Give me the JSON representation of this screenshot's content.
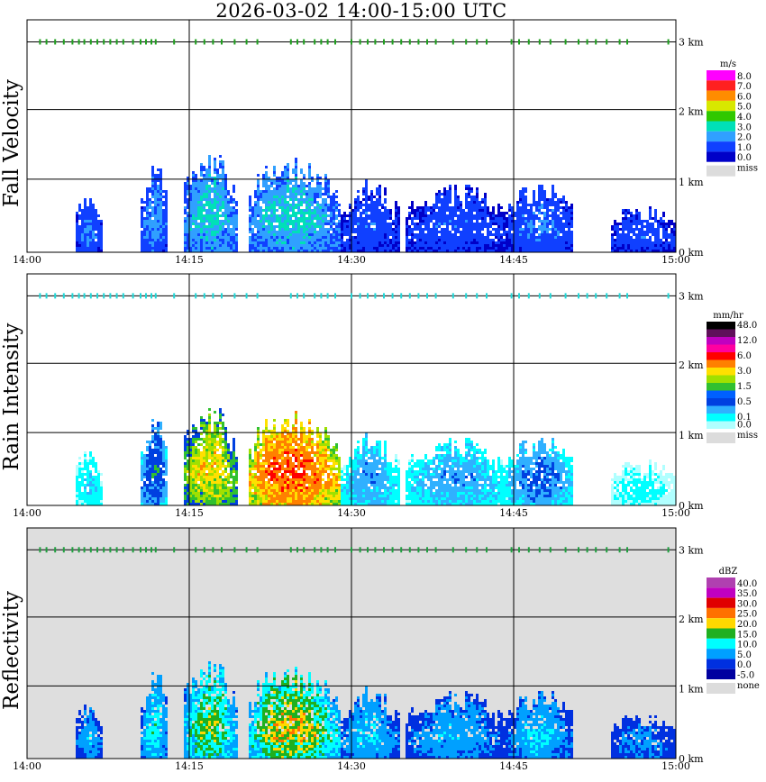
{
  "title": "2026-03-02  14:00-15:00 UTC",
  "x_ticks": [
    "14:00",
    "14:15",
    "14:30",
    "14:45",
    "15:00"
  ],
  "y_ticks": [
    "0 km",
    "1 km",
    "2 km",
    "3 km"
  ],
  "panels": [
    {
      "id": "fall-velocity",
      "label": "Fall Velocity",
      "legend_unit": "m/s",
      "legend": [
        {
          "label": "8.0",
          "color": "#ff00ff"
        },
        {
          "label": "7.0",
          "color": "#ff2020"
        },
        {
          "label": "6.0",
          "color": "#ff8c00"
        },
        {
          "label": "5.0",
          "color": "#d8e800"
        },
        {
          "label": "4.0",
          "color": "#30c800"
        },
        {
          "label": "3.0",
          "color": "#00e0b8"
        },
        {
          "label": "2.0",
          "color": "#30a0ff"
        },
        {
          "label": "1.0",
          "color": "#1040ff"
        },
        {
          "label": "0.0",
          "color": "#0000c8"
        }
      ],
      "missing_label": "miss",
      "marker_color": "#20a020",
      "background": "#ffffff"
    },
    {
      "id": "rain-intensity",
      "label": "Rain Intensity",
      "legend_unit": "mm/hr",
      "legend": [
        {
          "label": "48.0",
          "color": "#000000"
        },
        {
          "label": "",
          "color": "#60105a"
        },
        {
          "label": "12.0",
          "color": "#c000c0"
        },
        {
          "label": "",
          "color": "#ff00a0"
        },
        {
          "label": "6.0",
          "color": "#ff0000"
        },
        {
          "label": "",
          "color": "#ff8000"
        },
        {
          "label": "3.0",
          "color": "#ffe000"
        },
        {
          "label": "",
          "color": "#a0e000"
        },
        {
          "label": "1.5",
          "color": "#30c030"
        },
        {
          "label": "",
          "color": "#0060ff"
        },
        {
          "label": "0.5",
          "color": "#0040e0"
        },
        {
          "label": "",
          "color": "#30b0ff"
        },
        {
          "label": "0.1",
          "color": "#00ffff"
        },
        {
          "label": "0.0",
          "color": "#b0ffff"
        }
      ],
      "missing_label": "miss",
      "marker_color": "#20d8d8",
      "background": "#ffffff"
    },
    {
      "id": "reflectivity",
      "label": "Reflectivity",
      "legend_unit": "dBZ",
      "legend": [
        {
          "label": "40.0",
          "color": "#b040b0"
        },
        {
          "label": "35.0",
          "color": "#c000c0"
        },
        {
          "label": "30.0",
          "color": "#e00000"
        },
        {
          "label": "25.0",
          "color": "#ff7000"
        },
        {
          "label": "20.0",
          "color": "#ffd800"
        },
        {
          "label": "15.0",
          "color": "#20b020"
        },
        {
          "label": "10.0",
          "color": "#00ffff"
        },
        {
          "label": "5.0",
          "color": "#00a0ff"
        },
        {
          "label": "0.0",
          "color": "#0030e0"
        },
        {
          "label": "-5.0",
          "color": "#0000a0"
        }
      ],
      "missing_label": "none",
      "marker_color": "#20a040",
      "background": "#dedede"
    }
  ],
  "chart_data": {
    "type": "heatmap",
    "x_range_minutes": [
      0,
      60
    ],
    "y_range_km": [
      0,
      3.3
    ],
    "grid": true,
    "markers_height_km": 3.0,
    "marker_minutes": [
      1.2,
      1.8,
      2.6,
      3.4,
      4.2,
      4.8,
      5.3,
      5.9,
      6.5,
      7.1,
      7.7,
      8.3,
      8.9,
      9.8,
      10.5,
      11.0,
      11.5,
      11.9,
      13.6,
      15.6,
      16.4,
      17.2,
      18.0,
      19.2,
      20.3,
      21.3,
      24.4,
      25.0,
      25.6,
      26.6,
      27.2,
      27.8,
      28.5,
      30.0,
      30.8,
      31.5,
      32.2,
      33.0,
      33.8,
      34.6,
      35.4,
      36.2,
      37.0,
      37.8,
      39.4,
      40.6,
      41.6,
      42.5,
      44.8,
      45.5,
      46.4,
      47.4,
      48.4,
      49.8,
      51.0,
      51.8,
      52.6,
      53.6,
      54.8,
      55.5,
      59.3
    ],
    "echo_regions": [
      {
        "start_min": 4.5,
        "end_min": 7.0,
        "top_km": 0.72,
        "max_fall_velocity": 2.5,
        "max_rain": 0.3,
        "max_dbz": 10
      },
      {
        "start_min": 10.5,
        "end_min": 13.0,
        "top_km": 1.15,
        "max_fall_velocity": 3.0,
        "max_rain": 1.0,
        "max_dbz": 15
      },
      {
        "start_min": 14.5,
        "end_min": 19.5,
        "top_km": 1.25,
        "max_fall_velocity": 4.0,
        "max_rain": 3.0,
        "max_dbz": 22
      },
      {
        "start_min": 20.5,
        "end_min": 29.0,
        "top_km": 1.2,
        "max_fall_velocity": 4.0,
        "max_rain": 6.0,
        "max_dbz": 28
      },
      {
        "start_min": 29.0,
        "end_min": 34.5,
        "top_km": 0.9,
        "max_fall_velocity": 2.0,
        "max_rain": 0.5,
        "max_dbz": 12
      },
      {
        "start_min": 35.0,
        "end_min": 44.5,
        "top_km": 0.85,
        "max_fall_velocity": 2.0,
        "max_rain": 0.5,
        "max_dbz": 10
      },
      {
        "start_min": 44.5,
        "end_min": 50.5,
        "top_km": 0.9,
        "max_fall_velocity": 2.5,
        "max_rain": 0.7,
        "max_dbz": 12
      },
      {
        "start_min": 54.0,
        "end_min": 60.0,
        "top_km": 0.6,
        "max_fall_velocity": 2.0,
        "max_rain": 0.2,
        "max_dbz": 8
      }
    ]
  }
}
